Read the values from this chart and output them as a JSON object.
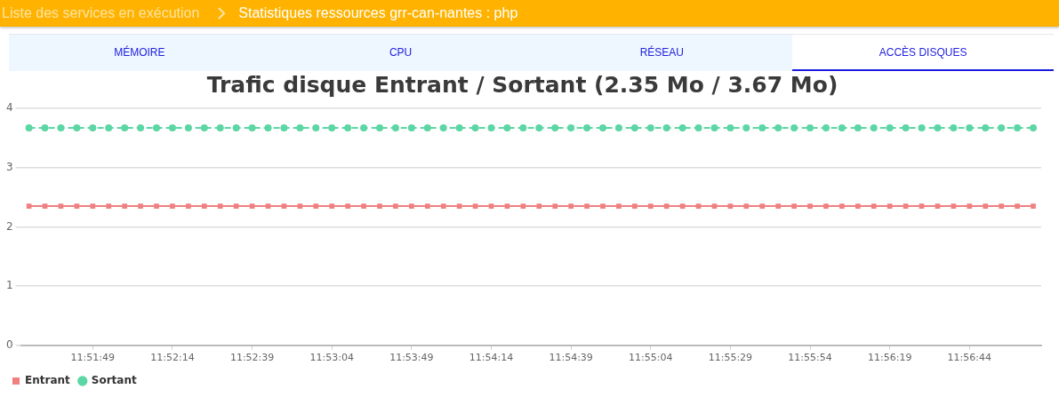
{
  "chart_data": {
    "type": "line",
    "title": "Trafic disque Entrant / Sortant (2.35 Mo / 3.67 Mo)",
    "annotations": [
      "Liste des services en exécution",
      "Statistiques ressources grr-can-nantes : php",
      "MÉMOIRE",
      "CPU",
      "RÉSEAU",
      "ACCÈS DISQUES"
    ],
    "categories": [
      null,
      null,
      null,
      null,
      "11:51:49",
      null,
      null,
      null,
      null,
      "11:52:14",
      null,
      null,
      null,
      null,
      "11:52:39",
      null,
      null,
      null,
      null,
      "11:53:04",
      null,
      null,
      null,
      null,
      "11:53:49",
      null,
      null,
      null,
      null,
      "11:54:14",
      null,
      null,
      null,
      null,
      "11:54:39",
      null,
      null,
      null,
      null,
      "11:55:04",
      null,
      null,
      null,
      null,
      "11:55:29",
      null,
      null,
      null,
      null,
      "11:55:54",
      null,
      null,
      null,
      null,
      "11:56:19",
      null,
      null,
      null,
      null,
      "11:56:44",
      null,
      null,
      null,
      null
    ],
    "series": [
      {
        "name": "Entrant",
        "color": "#f08080",
        "marker": "square",
        "line_style": "solid",
        "values": [
          2.35,
          2.35,
          2.35,
          2.35,
          2.35,
          2.35,
          2.35,
          2.35,
          2.35,
          2.35,
          2.35,
          2.35,
          2.35,
          2.35,
          2.35,
          2.35,
          2.35,
          2.35,
          2.35,
          2.35,
          2.35,
          2.35,
          2.35,
          2.35,
          2.35,
          2.35,
          2.35,
          2.35,
          2.35,
          2.35,
          2.35,
          2.35,
          2.35,
          2.35,
          2.35,
          2.35,
          2.35,
          2.35,
          2.35,
          2.35,
          2.35,
          2.35,
          2.35,
          2.35,
          2.35,
          2.35,
          2.35,
          2.35,
          2.35,
          2.35,
          2.35,
          2.35,
          2.35,
          2.35,
          2.35,
          2.35,
          2.35,
          2.35,
          2.35,
          2.35,
          2.35,
          2.35,
          2.35,
          2.35
        ]
      },
      {
        "name": "Sortant",
        "color": "#5cd6a4",
        "marker": "circle",
        "line_style": "dashed",
        "values": [
          3.67,
          3.67,
          3.67,
          3.67,
          3.67,
          3.67,
          3.67,
          3.67,
          3.67,
          3.67,
          3.67,
          3.67,
          3.67,
          3.67,
          3.67,
          3.67,
          3.67,
          3.67,
          3.67,
          3.67,
          3.67,
          3.67,
          3.67,
          3.67,
          3.67,
          3.67,
          3.67,
          3.67,
          3.67,
          3.67,
          3.67,
          3.67,
          3.67,
          3.67,
          3.67,
          3.67,
          3.67,
          3.67,
          3.67,
          3.67,
          3.67,
          3.67,
          3.67,
          3.67,
          3.67,
          3.67,
          3.67,
          3.67,
          3.67,
          3.67,
          3.67,
          3.67,
          3.67,
          3.67,
          3.67,
          3.67,
          3.67,
          3.67,
          3.67,
          3.67,
          3.67,
          3.67,
          3.67,
          3.67
        ]
      }
    ],
    "ylim": [
      0,
      4
    ],
    "yticks": [
      0,
      1,
      2,
      3,
      4
    ],
    "grid": "y",
    "legend": "bottom left"
  }
}
